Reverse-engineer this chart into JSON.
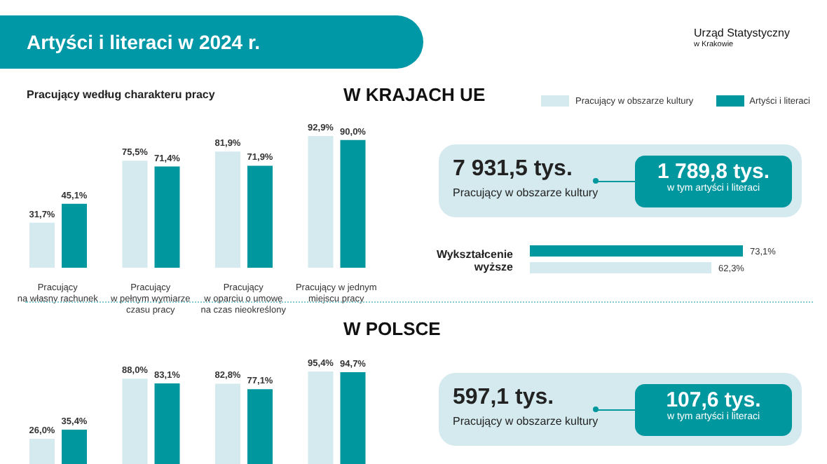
{
  "chart_data": [
    {
      "type": "bar",
      "title": "Artyści i literaci w 2024 r.",
      "subtitle": "Pracujący według charakteru pracy",
      "annotations": [
        "W KRAJACH UE",
        "Urząd Statystyczny",
        "w Krakowie"
      ],
      "categories": [
        "Pracujący\nna własny rachunek",
        "Pracujący\nw pełnym wymiarze\nczasu pracy",
        "Pracujący\nw oparciu o umowę\nna czas nieokreślony",
        "Pracujący w jednym\nmiejscu pracy"
      ],
      "tick_labels": "x",
      "legend": "top right",
      "series": [
        {
          "name": "Pracujący w obszarze kultury",
          "color": "#d4eaee",
          "values": [
            31.7,
            75.5,
            81.9,
            92.9
          ],
          "value_labels": [
            "31,7%",
            "75,5%",
            "81,9%",
            "92,9%"
          ]
        },
        {
          "name": "Artyści i literaci",
          "color": "#00979f",
          "values": [
            45.1,
            71.4,
            71.9,
            90.0
          ],
          "value_labels": [
            "45,1%",
            "71,4%",
            "71,9%",
            "90,0%"
          ]
        }
      ]
    },
    {
      "type": "other",
      "annotations": [
        "7 931,5 tys.",
        "Pracujący w obszarze kultury",
        "1 789,8 tys.",
        "w tym artyści i literaci"
      ]
    },
    {
      "type": "bar",
      "orientation": "horizontal",
      "categories": [
        "Wykształcenie\nwyższe"
      ],
      "tick_labels": "y",
      "series": [
        {
          "color": "#00979f",
          "values": [
            73.1
          ],
          "value_labels": [
            "73,1%"
          ]
        },
        {
          "color": "#d4eaee",
          "values": [
            62.3
          ],
          "value_labels": [
            "62,3%"
          ]
        }
      ]
    },
    {
      "type": "bar",
      "annotations": [
        "W POLSCE"
      ],
      "categories": [
        null,
        null,
        null,
        null
      ],
      "tick_labels": false,
      "series": [
        {
          "color": "#d4eaee",
          "values": [
            26.0,
            88.0,
            82.8,
            95.4
          ],
          "value_labels": [
            "26,0%",
            "88,0%",
            "82,8%",
            "95,4%"
          ]
        },
        {
          "color": "#00979f",
          "values": [
            35.4,
            83.1,
            77.1,
            94.7
          ],
          "value_labels": [
            "35,4%",
            "83,1%",
            "77,1%",
            "94,7%"
          ]
        }
      ]
    },
    {
      "type": "other",
      "annotations": [
        "597,1 tys.",
        "Pracujący w obszarze kultury",
        "107,6 tys.",
        "w tym artyści i literaci"
      ]
    }
  ]
}
